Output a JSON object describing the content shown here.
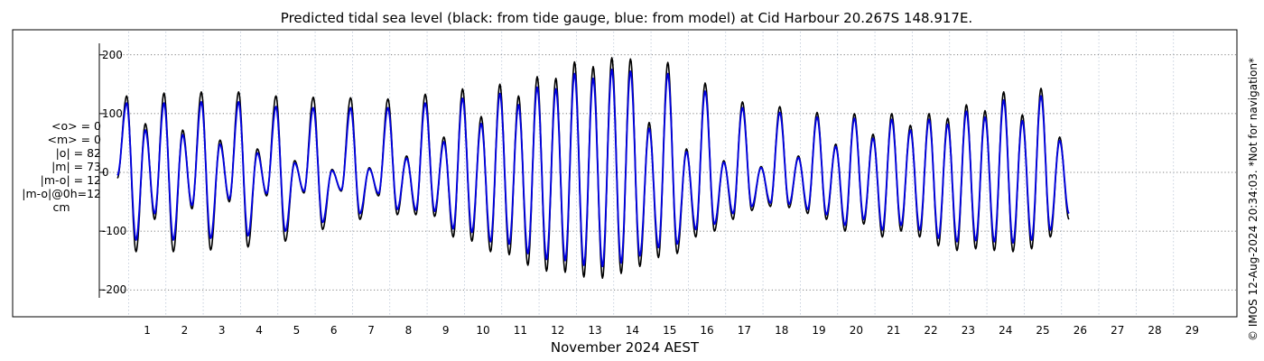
{
  "chart_data": {
    "type": "line",
    "title": "Predicted tidal sea level (black: from tide gauge, blue: from model) at Cid Harbour 20.267S 148.917E.",
    "xlabel": "November 2024 AEST",
    "ylabel": "",
    "xlim": [
      0.2,
      30.2
    ],
    "ylim": [
      -215,
      215
    ],
    "x_ticks": [
      "1",
      "2",
      "3",
      "4",
      "5",
      "6",
      "7",
      "8",
      "9",
      "10",
      "11",
      "12",
      "13",
      "14",
      "15",
      "16",
      "17",
      "18",
      "19",
      "20",
      "21",
      "22",
      "23",
      "24",
      "25",
      "26",
      "27",
      "28",
      "29"
    ],
    "y_ticks": [
      "200",
      "100",
      "0",
      "-100",
      "-200"
    ],
    "grid": true,
    "series": [
      {
        "name": "black: from tide gauge",
        "color": "#000000",
        "samples_per_day": 4,
        "x_start": 0.2,
        "values": [
          -10,
          130,
          -135,
          83,
          -80,
          135,
          -135,
          72,
          -62,
          137,
          -132,
          55,
          -50,
          137,
          -127,
          40,
          -40,
          130,
          -117,
          20,
          -35,
          128,
          -97,
          5,
          -32,
          127,
          -80,
          8,
          -40,
          125,
          -72,
          28,
          -72,
          133,
          -75,
          60,
          -110,
          142,
          -117,
          95,
          -135,
          150,
          -140,
          130,
          -158,
          163,
          -168,
          160,
          -170,
          188,
          -178,
          180,
          -180,
          195,
          -172,
          193,
          -160,
          85,
          -145,
          187,
          -138,
          40,
          -110,
          152,
          -100,
          20,
          -80,
          120,
          -65,
          10,
          -58,
          112,
          -60,
          28,
          -70,
          102,
          -80,
          48,
          -100,
          100,
          -88,
          65,
          -110,
          100,
          -100,
          80,
          -110,
          100,
          -125,
          92,
          -133,
          115,
          -130,
          105,
          -133,
          137,
          -135,
          98,
          -130,
          143,
          -110,
          60,
          -80
        ]
      },
      {
        "name": "blue: from model",
        "color": "#0000dd",
        "samples_per_day": 4,
        "x_start": 0.2,
        "values": [
          -5,
          118,
          -115,
          72,
          -70,
          118,
          -115,
          64,
          -56,
          120,
          -112,
          48,
          -45,
          120,
          -108,
          33,
          -36,
          112,
          -100,
          16,
          -32,
          110,
          -85,
          3,
          -30,
          110,
          -70,
          6,
          -36,
          110,
          -63,
          24,
          -64,
          118,
          -66,
          52,
          -96,
          126,
          -102,
          83,
          -118,
          134,
          -122,
          115,
          -138,
          145,
          -148,
          142,
          -150,
          168,
          -158,
          160,
          -160,
          175,
          -154,
          172,
          -142,
          75,
          -128,
          168,
          -122,
          35,
          -97,
          138,
          -88,
          17,
          -70,
          110,
          -58,
          8,
          -52,
          102,
          -54,
          25,
          -63,
          94,
          -72,
          44,
          -90,
          92,
          -80,
          58,
          -98,
          90,
          -90,
          72,
          -98,
          90,
          -112,
          82,
          -118,
          104,
          -116,
          94,
          -118,
          123,
          -120,
          88,
          -115,
          130,
          -98,
          54,
          -70
        ]
      }
    ],
    "annotations": {
      "stats": [
        "<o> = 0",
        "<m> = 0",
        "|o| = 82",
        "|m| = 73",
        "|m-o| = 12",
        "|m-o|@0h=12",
        "cm"
      ],
      "watermark": "© IMOS 12-Aug-2024 20:34:03. *Not for navigation*"
    }
  }
}
